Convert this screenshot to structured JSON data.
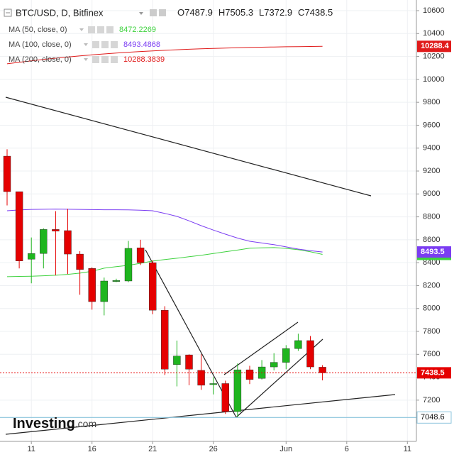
{
  "chart_data": {
    "type": "candlestick",
    "title": "BTC/USD, D, Bitfinex",
    "ohlc_letters": [
      "O",
      "H",
      "L",
      "C"
    ],
    "watermark": "Investing",
    "watermark_suffix": ".com",
    "categories": [
      null,
      null,
      "11",
      null,
      null,
      null,
      null,
      "16",
      null,
      null,
      null,
      null,
      "21",
      null,
      null,
      null,
      null,
      "26",
      null,
      null,
      null,
      null,
      null,
      "Jun",
      null,
      null,
      null,
      null,
      "6",
      null,
      null,
      null,
      null,
      "11"
    ],
    "open": [
      9330,
      9020,
      8430,
      8480,
      8690,
      8680,
      8475,
      8350,
      8060,
      8240,
      8240,
      8530,
      8400,
      7985,
      7510,
      7595,
      7460,
      7340,
      7345,
      7100,
      7465,
      7390,
      7490,
      7530,
      7650,
      7720,
      7487.9,
      null,
      null,
      null,
      null,
      null,
      null,
      null
    ],
    "high": [
      9390,
      9020,
      8620,
      8700,
      8850,
      8870,
      8500,
      8360,
      8270,
      8260,
      8590,
      8600,
      8420,
      8020,
      7720,
      7600,
      7600,
      7400,
      7370,
      7520,
      7500,
      7550,
      7610,
      7680,
      7780,
      7760,
      7505.3,
      null,
      null,
      null,
      null,
      null,
      null,
      null
    ],
    "low": [
      8900,
      8350,
      8220,
      8350,
      8290,
      8300,
      8120,
      7990,
      7940,
      8230,
      8230,
      8380,
      7950,
      7420,
      7320,
      7330,
      7290,
      7250,
      7080,
      7050,
      7340,
      7380,
      7460,
      7470,
      7630,
      7470,
      7372.9,
      null,
      null,
      null,
      null,
      null,
      null,
      null
    ],
    "close": [
      9020,
      8415,
      8480,
      8690,
      8675,
      8475,
      8340,
      8060,
      8240,
      8245,
      8525,
      8400,
      7985,
      7470,
      7585,
      7470,
      7330,
      7345,
      7100,
      7465,
      7380,
      7490,
      7530,
      7650,
      7720,
      7490,
      7438.5,
      null,
      null,
      null,
      null,
      null,
      null,
      null
    ],
    "up_color": "#1fb51f",
    "down_color": "#e50000",
    "series": [
      {
        "name": "MA (50, close, 0)",
        "color": "#3fd23f",
        "values": [
          8278,
          8280,
          8282,
          8286,
          8290,
          8298,
          8309,
          8325,
          8352,
          8365,
          8377,
          8395,
          8414,
          8427,
          8439,
          8452,
          8464,
          8480,
          8495,
          8510,
          8526,
          8530,
          8532,
          8525,
          8513,
          8495,
          8472.2269,
          null,
          null,
          null,
          null,
          null,
          null,
          null
        ],
        "value_labels": [
          null,
          null,
          null,
          null,
          null,
          null,
          null,
          null,
          null,
          null,
          null,
          null,
          null,
          null,
          null,
          null,
          null,
          null,
          null,
          null,
          null,
          null,
          null,
          null,
          null,
          null,
          "8472.2",
          null,
          null,
          null,
          null,
          null,
          null,
          null
        ]
      },
      {
        "name": "MA (100, close, 0)",
        "color": "#7b3df2",
        "values": [
          8853,
          8860,
          8865,
          8866,
          8868,
          8866,
          8865,
          8863,
          8862,
          8862,
          8861,
          8858,
          8853,
          8830,
          8804,
          8765,
          8723,
          8685,
          8649,
          8615,
          8587,
          8572,
          8557,
          8538,
          8519,
          8505,
          8493.4868,
          null,
          null,
          null,
          null,
          null,
          null,
          null
        ],
        "value_labels": [
          null,
          null,
          null,
          null,
          null,
          null,
          null,
          null,
          null,
          null,
          null,
          null,
          null,
          null,
          null,
          null,
          null,
          null,
          null,
          null,
          null,
          null,
          null,
          null,
          null,
          null,
          "8493.5",
          null,
          null,
          null,
          null,
          null,
          null,
          null
        ]
      },
      {
        "name": "MA (200, close, 0)",
        "color": "#e01b1b",
        "values": [
          10136,
          10150,
          10162,
          10174,
          10185,
          10195,
          10205,
          10214,
          10222,
          10230,
          10237,
          10243,
          10249,
          10254,
          10259,
          10263,
          10267,
          10270,
          10273,
          10276,
          10279,
          10281,
          10283,
          10285,
          10286,
          10287,
          10288.3839,
          null,
          null,
          null,
          null,
          null,
          null,
          null
        ],
        "value_labels": [
          null,
          null,
          null,
          null,
          null,
          null,
          null,
          null,
          null,
          null,
          null,
          null,
          null,
          null,
          null,
          null,
          null,
          null,
          null,
          null,
          null,
          null,
          null,
          null,
          null,
          null,
          "10288.4",
          null,
          null,
          null,
          null,
          null,
          null,
          null
        ]
      }
    ],
    "reference_line": {
      "value": 7048.6,
      "color": "#8cc4dc"
    },
    "ylim": [
      6840,
      10693
    ],
    "yticks": [
      7200,
      7400,
      7600,
      7800,
      8000,
      8200,
      8400,
      8600,
      8800,
      9000,
      9200,
      9400,
      9600,
      9800,
      10000,
      10200,
      10400,
      10600
    ],
    "grid": true
  }
}
